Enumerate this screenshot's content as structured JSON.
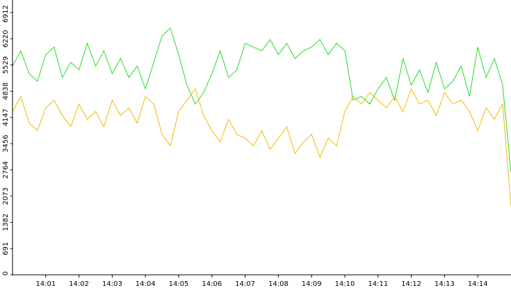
{
  "chart_data": {
    "type": "line",
    "x": [
      0,
      0.25,
      0.5,
      0.75,
      1,
      1.25,
      1.5,
      1.75,
      2,
      2.25,
      2.5,
      2.75,
      3,
      3.25,
      3.5,
      3.75,
      4,
      4.25,
      4.5,
      4.75,
      5,
      5.25,
      5.5,
      5.75,
      6,
      6.25,
      6.5,
      6.75,
      7,
      7.25,
      7.5,
      7.75,
      8,
      8.25,
      8.5,
      8.75,
      9,
      9.25,
      9.5,
      9.75,
      10,
      10.25,
      10.5,
      10.75,
      11,
      11.25,
      11.5,
      11.75,
      12,
      12.25,
      12.5,
      12.75,
      13,
      13.25,
      13.5,
      13.75,
      14,
      14.25,
      14.5,
      14.75,
      15
    ],
    "series": [
      {
        "color": "#22dd22",
        "values": [
          5500,
          5900,
          5300,
          5100,
          5800,
          6000,
          5200,
          5600,
          5400,
          6100,
          5500,
          5900,
          5300,
          5700,
          5200,
          5500,
          4900,
          5600,
          6300,
          6500,
          5800,
          5000,
          4500,
          4800,
          5300,
          5900,
          5200,
          5400,
          6100,
          6000,
          5900,
          6200,
          5800,
          6100,
          5700,
          5900,
          6000,
          6200,
          5800,
          6100,
          5900,
          4600,
          4700,
          4500,
          4900,
          5200,
          4600,
          5700,
          5000,
          5400,
          4800,
          5600,
          4900,
          5100,
          5500,
          4700,
          6000,
          5200,
          5700,
          5000,
          2700
        ]
      },
      {
        "color": "#f5b800",
        "values": [
          4300,
          4700,
          4000,
          3800,
          4400,
          4600,
          4200,
          3900,
          4500,
          4100,
          4300,
          3900,
          4600,
          4200,
          4400,
          4000,
          4700,
          4500,
          3700,
          3400,
          4300,
          4600,
          4900,
          4200,
          3800,
          3500,
          4100,
          3700,
          3600,
          3400,
          3800,
          3300,
          3600,
          3900,
          3200,
          3500,
          3700,
          3100,
          3600,
          3400,
          4300,
          4700,
          4500,
          4800,
          4600,
          4400,
          4700,
          4300,
          4900,
          4500,
          4600,
          4200,
          4800,
          4500,
          4600,
          4300,
          3800,
          4400,
          4100,
          4500,
          1800
        ]
      }
    ],
    "xlim": [
      0,
      15
    ],
    "xticks": [
      {
        "value": 1,
        "label": "14:01"
      },
      {
        "value": 2,
        "label": "14:02"
      },
      {
        "value": 3,
        "label": "14:03"
      },
      {
        "value": 4,
        "label": "14:04"
      },
      {
        "value": 5,
        "label": "14:05"
      },
      {
        "value": 6,
        "label": "14:06"
      },
      {
        "value": 7,
        "label": "14:07"
      },
      {
        "value": 8,
        "label": "14:08"
      },
      {
        "value": 9,
        "label": "14:09"
      },
      {
        "value": 10,
        "label": "14:10"
      },
      {
        "value": 11,
        "label": "14:11"
      },
      {
        "value": 12,
        "label": "14:12"
      },
      {
        "value": 13,
        "label": "14:13"
      },
      {
        "value": 14,
        "label": "14:14"
      }
    ],
    "ylim": [
      0,
      6912
    ],
    "yticks": [
      0,
      691,
      1382,
      2073,
      2764,
      3456,
      4147,
      4838,
      5529,
      6220,
      6912
    ]
  }
}
